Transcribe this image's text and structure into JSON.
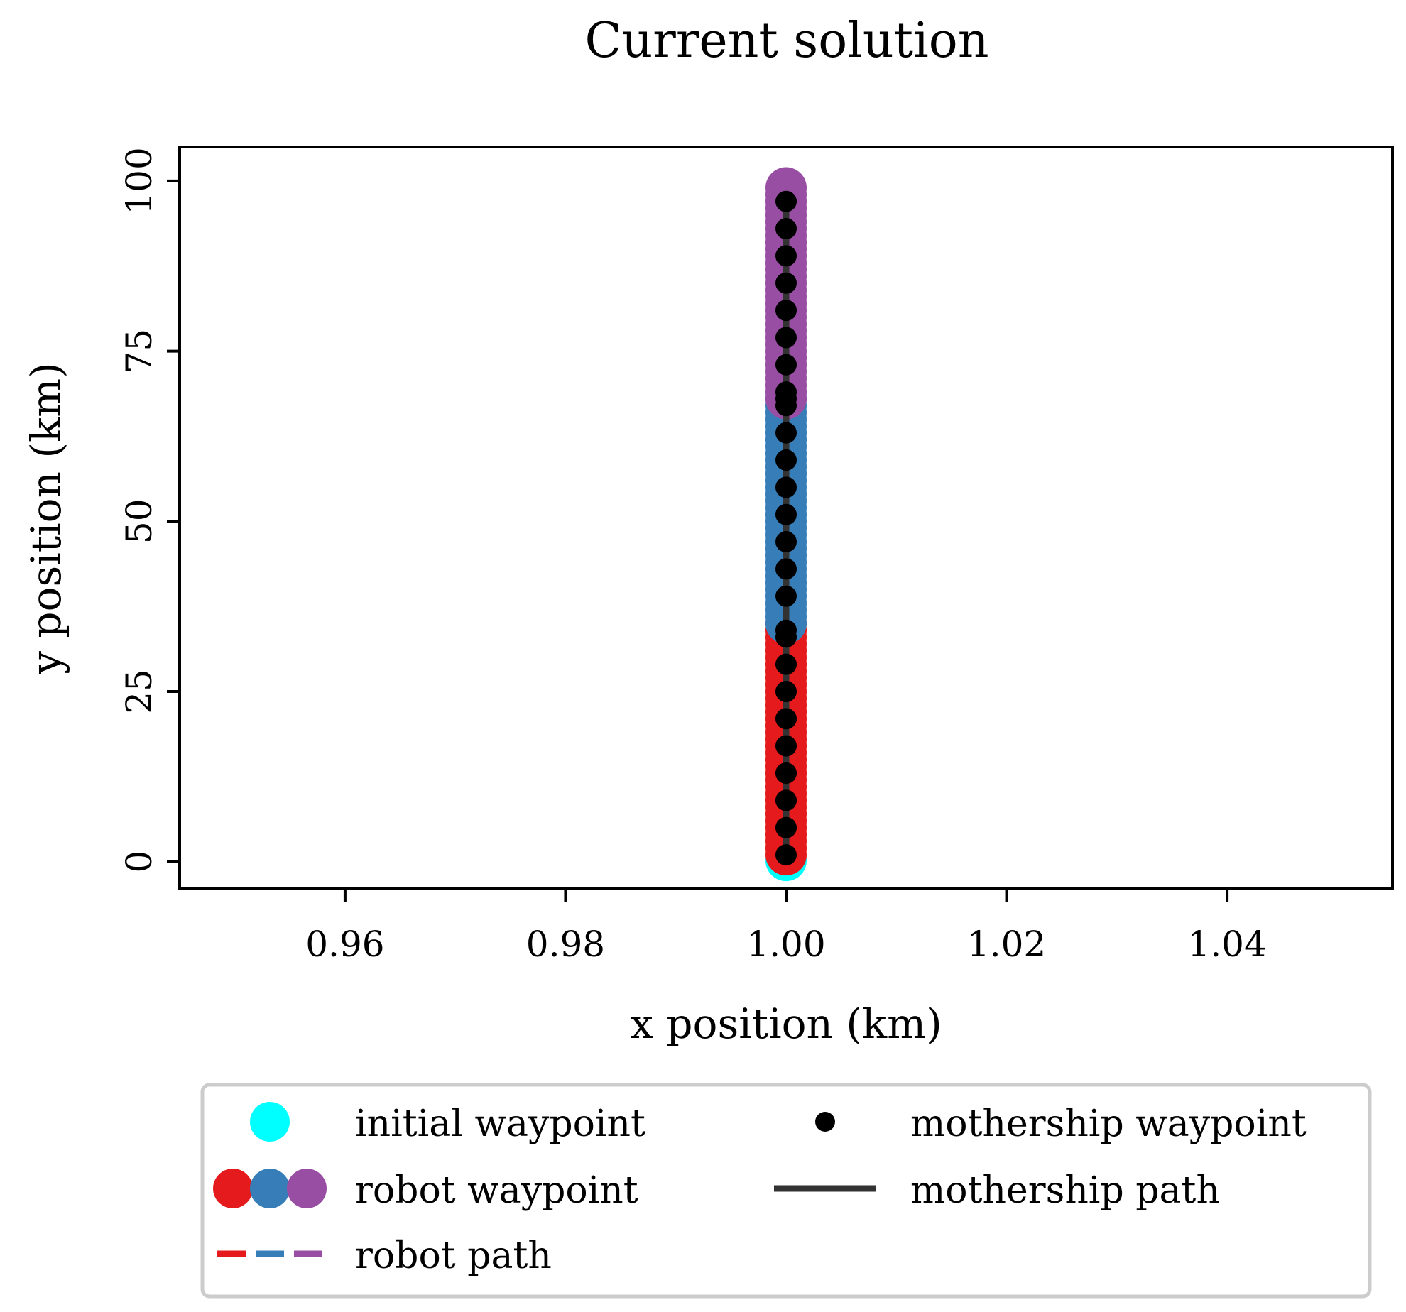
{
  "chart_data": {
    "type": "scatter",
    "title": "Current solution",
    "xlabel": "x position (km)",
    "ylabel": "y position (km)",
    "xlim": [
      0.945,
      1.055
    ],
    "ylim": [
      -4,
      105
    ],
    "xticks": [
      "0.96",
      "0.98",
      "1.00",
      "1.02",
      "1.04"
    ],
    "xtick_values": [
      0.96,
      0.98,
      1.0,
      1.02,
      1.04
    ],
    "yticks": [
      "0",
      "25",
      "50",
      "75",
      "100"
    ],
    "ytick_values": [
      0,
      25,
      50,
      75,
      100
    ],
    "grid": false,
    "legend_position": "below plot",
    "legend": [
      {
        "label": "initial waypoint",
        "marker": "large-circle",
        "colors": [
          "#00ffff"
        ]
      },
      {
        "label": "mothership waypoint",
        "marker": "small-circle",
        "colors": [
          "#000000"
        ]
      },
      {
        "label": "robot waypoint",
        "marker": "large-circle",
        "colors": [
          "#e41a1c",
          "#377eb8",
          "#984ea3"
        ]
      },
      {
        "label": "mothership path",
        "marker": "solid-line",
        "colors": [
          "#333333"
        ]
      },
      {
        "label": "robot path",
        "marker": "dashed-line",
        "colors": [
          "#e41a1c",
          "#377eb8",
          "#984ea3"
        ]
      }
    ],
    "series": [
      {
        "name": "initial waypoint",
        "color": "#00ffff",
        "x": [
          1.0
        ],
        "y": [
          1
        ]
      },
      {
        "name": "robot waypoint",
        "color": "#e41a1c",
        "x_constant": 1.0,
        "y_from": 1,
        "y_to": 35
      },
      {
        "name": "robot waypoint",
        "color": "#377eb8",
        "x_constant": 1.0,
        "y_from": 35,
        "y_to": 68
      },
      {
        "name": "robot waypoint",
        "color": "#984ea3",
        "x_constant": 1.0,
        "y_from": 68,
        "y_to": 99
      },
      {
        "name": "mothership path",
        "color": "#333333",
        "x": [
          1.0,
          1.0
        ],
        "y": [
          1,
          97
        ]
      },
      {
        "name": "mothership waypoint",
        "color": "#000000",
        "x_constant": 1.0,
        "y": [
          1,
          5,
          9,
          13,
          17,
          21,
          25,
          29,
          33,
          34,
          39,
          43,
          47,
          51,
          55,
          59,
          63,
          67,
          68,
          69,
          73,
          77,
          81,
          85,
          89,
          93,
          97
        ]
      }
    ]
  }
}
